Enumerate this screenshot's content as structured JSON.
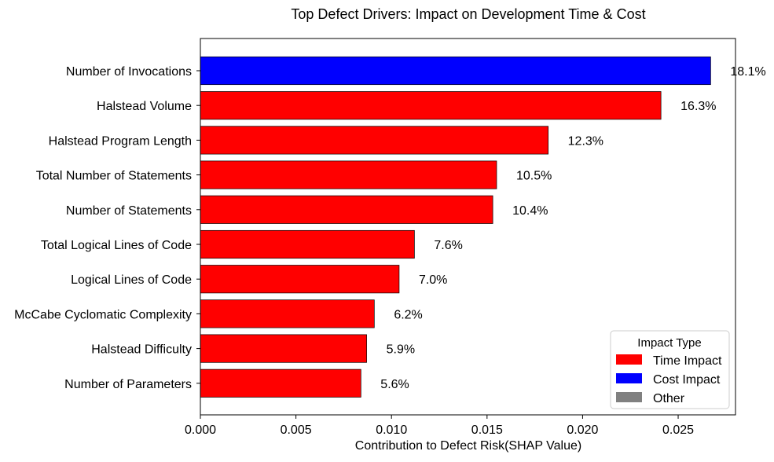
{
  "chart_data": {
    "type": "bar",
    "orientation": "horizontal",
    "title": "Top Defect Drivers: Impact on Development Time & Cost",
    "xlabel": "Contribution to Defect Risk(SHAP Value)",
    "ylabel": "",
    "xlim": [
      0,
      0.028
    ],
    "xticks": [
      {
        "value": 0.0,
        "label": "0.000"
      },
      {
        "value": 0.005,
        "label": "0.005"
      },
      {
        "value": 0.01,
        "label": "0.010"
      },
      {
        "value": 0.015,
        "label": "0.015"
      },
      {
        "value": 0.02,
        "label": "0.020"
      },
      {
        "value": 0.025,
        "label": "0.025"
      }
    ],
    "grid": false,
    "categories": [
      "Number of Invocations",
      "Halstead Volume",
      "Halstead Program Length",
      "Total Number of Statements",
      "Number of Statements",
      "Total Logical Lines of Code",
      "Logical Lines of Code",
      "McCabe Cyclomatic Complexity",
      "Halstead Difficulty",
      "Number of Parameters"
    ],
    "values": [
      0.0267,
      0.0241,
      0.0182,
      0.0155,
      0.0153,
      0.0112,
      0.0104,
      0.0091,
      0.0087,
      0.0084
    ],
    "data_labels": [
      "18.1%",
      "16.3%",
      "12.3%",
      "10.5%",
      "10.4%",
      "7.6%",
      "7.0%",
      "6.2%",
      "5.9%",
      "5.6%"
    ],
    "impact_types": [
      "Cost Impact",
      "Time Impact",
      "Time Impact",
      "Time Impact",
      "Time Impact",
      "Time Impact",
      "Time Impact",
      "Time Impact",
      "Time Impact",
      "Time Impact"
    ],
    "legend": {
      "title": "Impact Type",
      "placement": "lower-right",
      "entries": [
        {
          "name": "Time Impact",
          "color": "#ff0000"
        },
        {
          "name": "Cost Impact",
          "color": "#0000ff"
        },
        {
          "name": "Other",
          "color": "#808080"
        }
      ]
    }
  }
}
